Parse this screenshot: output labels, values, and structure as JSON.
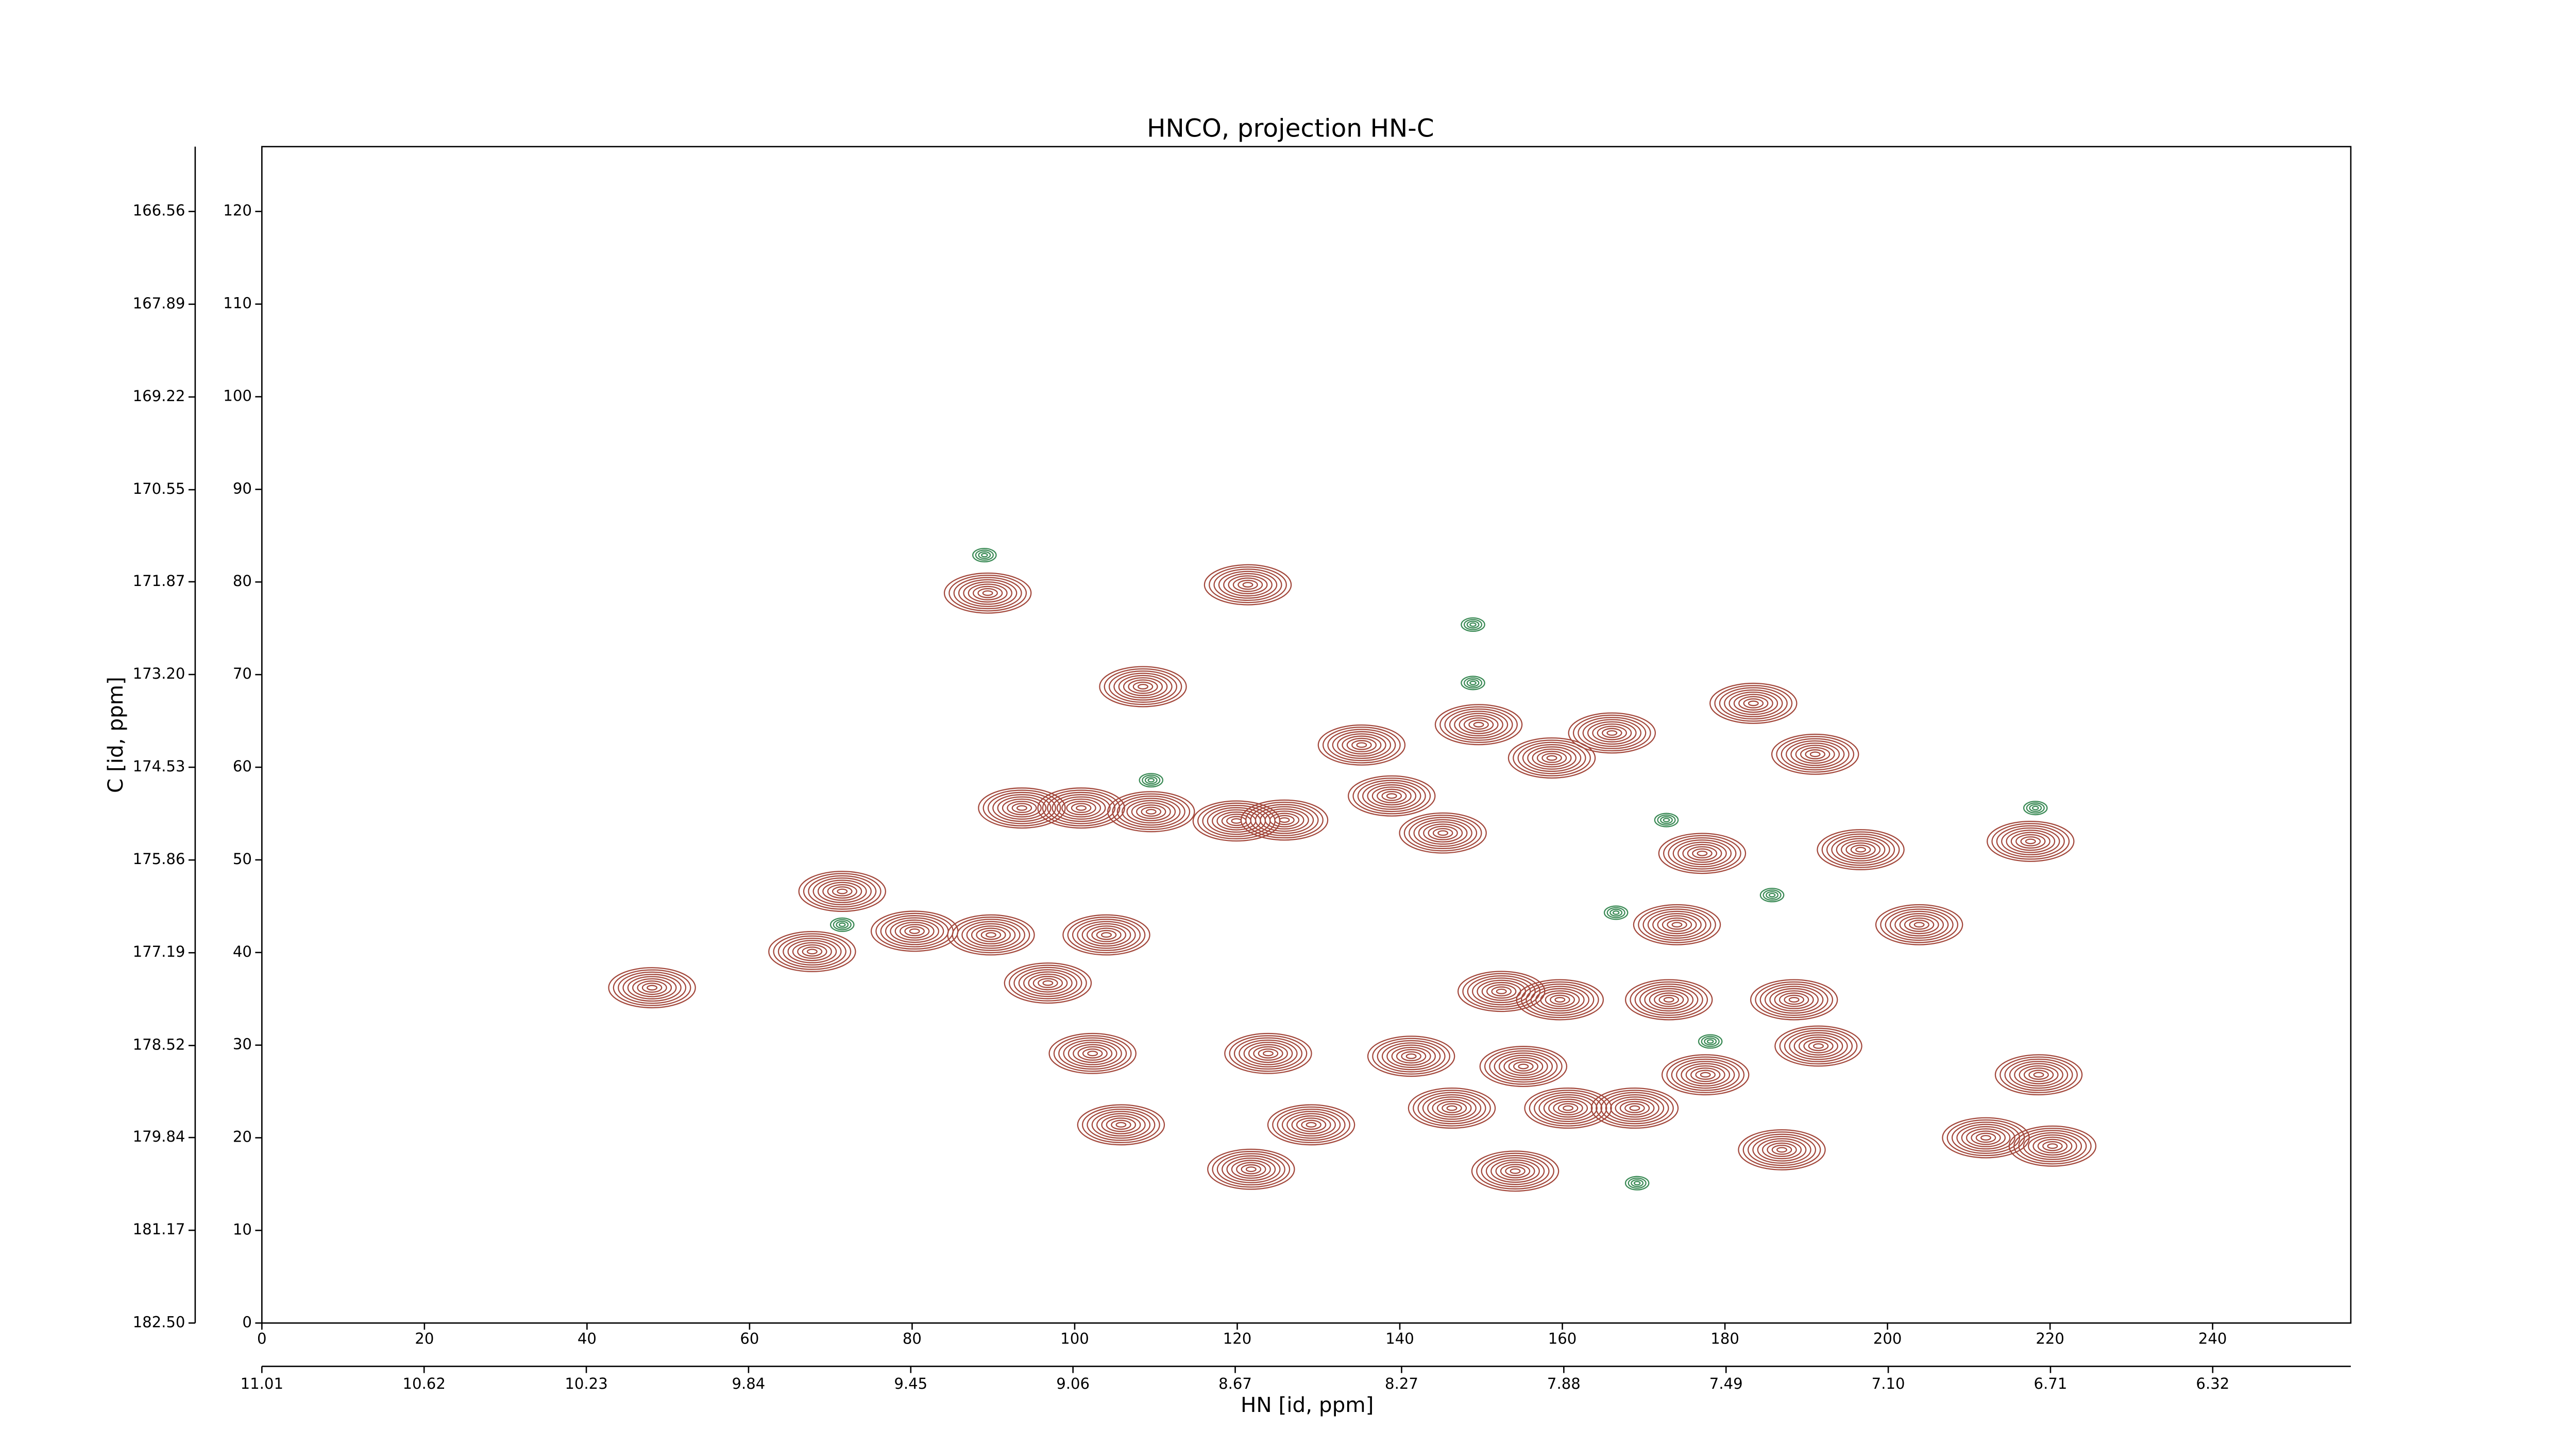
{
  "chart_data": {
    "type": "contour",
    "title": "HNCO, projection HN-C",
    "x_label": "HN [id, ppm]",
    "y_label": "C [id, ppm]",
    "xlim": [
      0,
      257
    ],
    "xticks": [
      0,
      20,
      40,
      60,
      80,
      100,
      120,
      140,
      160,
      180,
      200,
      220,
      240
    ],
    "x2lim": [
      11.01,
      5.988
    ],
    "x2ticks": [
      11.01,
      10.62,
      10.23,
      9.84,
      9.45,
      9.06,
      8.67,
      8.27,
      7.88,
      7.49,
      {
        "value": 7.1,
        "label": "7.10"
      },
      6.71,
      6.32
    ],
    "ylim": [
      0,
      127
    ],
    "yticks": [
      0,
      10,
      20,
      30,
      40,
      50,
      60,
      70,
      80,
      90,
      100,
      110,
      120
    ],
    "y2lim": [
      182.5,
      165.63
    ],
    "y2ticks": [
      {
        "value": 182.5,
        "label": "182.50"
      },
      181.17,
      179.84,
      178.52,
      177.19,
      175.86,
      174.53,
      {
        "value": 173.2,
        "label": "173.20"
      },
      171.87,
      170.55,
      169.22,
      167.89,
      166.56
    ],
    "series": [
      {
        "color": "#a3483c",
        "x": [
          89.3,
          121.3,
          108.4,
          135.3,
          149.7,
          158.7,
          166.1,
          183.5,
          191.1,
          93.5,
          100.8,
          109.4,
          119.9,
          125.8,
          139,
          145.3,
          71.4,
          80.3,
          89.7,
          103.9,
          96.7,
          48.0,
          67.7,
          177.2,
          196.7,
          217.6,
          203.9,
          174.1,
          188.5,
          152.5,
          159.7,
          173.1,
          102.2,
          123.8,
          141.4,
          155.2,
          177.6,
          191.5,
          218.6,
          105.7,
          129.1,
          146.4,
          160.7,
          168.9,
          121.7,
          154.2,
          187.0,
          212.1,
          220.3
        ],
        "y": [
          78.8,
          79.7,
          68.7,
          62.4,
          64.6,
          61.0,
          63.7,
          66.9,
          61.4,
          55.6,
          55.6,
          55.2,
          54.2,
          54.3,
          56.9,
          52.9,
          46.6,
          42.3,
          41.9,
          41.9,
          36.7,
          36.2,
          40.1,
          50.7,
          51.1,
          52.0,
          43.0,
          43.0,
          34.9,
          35.8,
          34.9,
          34.9,
          29.1,
          29.1,
          28.8,
          27.7,
          26.8,
          29.9,
          26.8,
          21.4,
          21.4,
          23.2,
          23.2,
          23.2,
          16.6,
          16.4,
          18.7,
          20.0,
          19.1
        ]
      },
      {
        "color": "#3a8a55",
        "x": [
          185.8,
          88.9,
          149,
          149,
          109.4,
          218.2,
          172.8,
          166.6,
          178.2,
          169.2,
          71.4
        ],
        "y": [
          46.2,
          82.9,
          75.4,
          69.1,
          58.6,
          55.6,
          54.3,
          44.3,
          30.4,
          15.1,
          43.0
        ]
      }
    ]
  }
}
